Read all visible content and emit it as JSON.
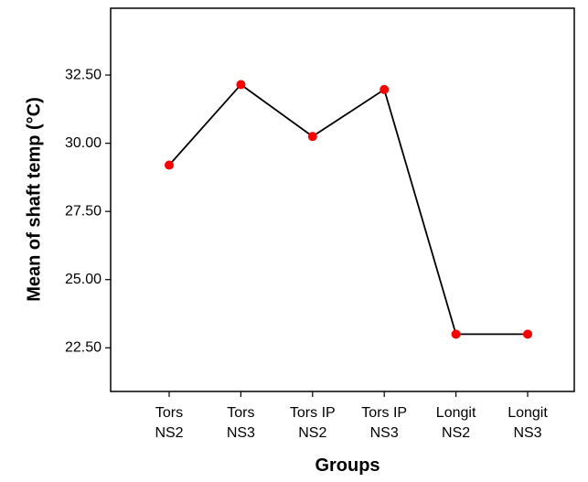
{
  "chart_data": {
    "type": "line",
    "title": "",
    "xlabel": "Groups",
    "ylabel": "Mean of shaft temp (°C)",
    "categories": [
      [
        "Tors",
        "NS2"
      ],
      [
        "Tors",
        "NS3"
      ],
      [
        "Tors IP",
        "NS2"
      ],
      [
        "Tors IP",
        "NS3"
      ],
      [
        "Longit",
        "NS2"
      ],
      [
        "Longit",
        "NS3"
      ]
    ],
    "series": [
      {
        "values": [
          29.2,
          32.15,
          30.25,
          31.97,
          23.0,
          23.0
        ],
        "line_color": "#000000",
        "marker_color": "#ff0000"
      }
    ],
    "yticks": [
      "22.50",
      "25.00",
      "27.50",
      "30.00",
      "32.50"
    ],
    "ytick_values": [
      22.5,
      25.0,
      27.5,
      30.0,
      32.5
    ],
    "ylim": [
      20.9,
      34.95
    ],
    "grid": false,
    "legend": "none"
  }
}
